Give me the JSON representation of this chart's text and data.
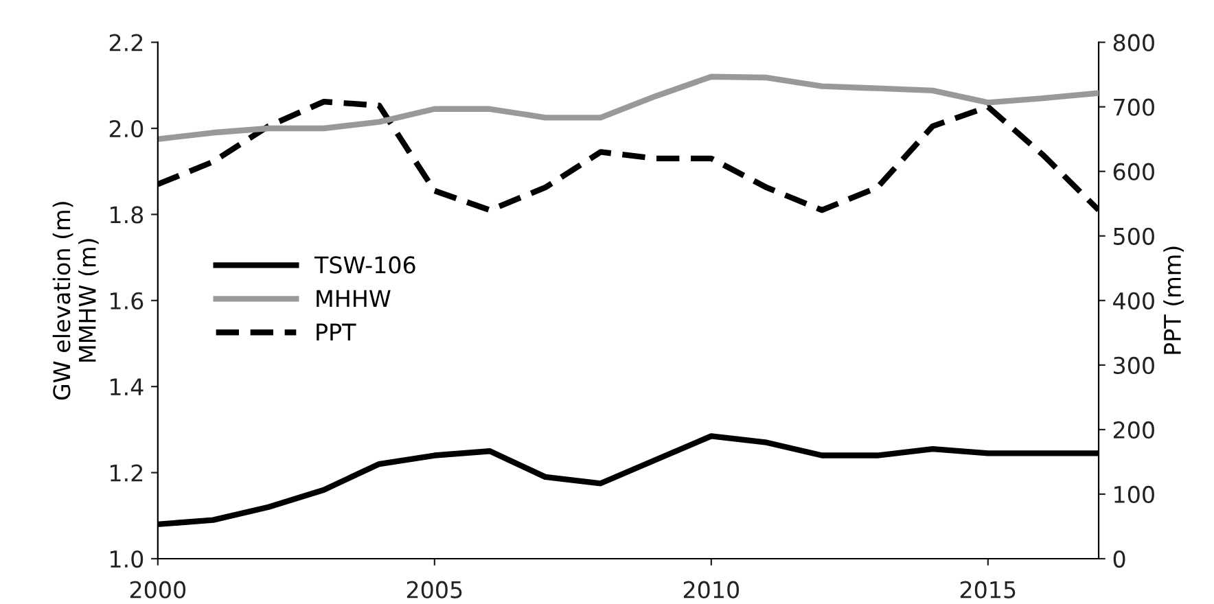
{
  "chart_data": {
    "type": "line",
    "ylabel": "GW elevation (m)\nMMHW (m)",
    "y2label": "PPT (mm)",
    "x": [
      2000,
      2001,
      2002,
      2003,
      2004,
      2005,
      2006,
      2007,
      2008,
      2009,
      2010,
      2011,
      2012,
      2013,
      2014,
      2015,
      2016,
      2017
    ],
    "xlim": [
      2000,
      2017
    ],
    "xticks": [
      2000,
      2005,
      2010,
      2015
    ],
    "ylim": [
      1.0,
      2.2
    ],
    "yticks": [
      {
        "value": 1.0,
        "label": "1.0"
      },
      1.2,
      1.4,
      1.6,
      1.8,
      {
        "value": 2.0,
        "label": "2.0"
      },
      2.2
    ],
    "y2lim": [
      0,
      800
    ],
    "y2ticks": [
      0,
      100,
      200,
      300,
      400,
      500,
      600,
      700,
      800
    ],
    "grid": false,
    "legend": "left",
    "marker": "none",
    "series": [
      {
        "name": "TSW-106",
        "color": "#000000",
        "line_style": "solid",
        "values": [
          1.08,
          1.09,
          1.12,
          1.16,
          1.22,
          1.24,
          1.25,
          1.19,
          1.175,
          1.23,
          1.285,
          1.27,
          1.24,
          1.24,
          1.255,
          1.245,
          1.245,
          1.245
        ]
      },
      {
        "name": "MHHW",
        "color": "#999999",
        "line_style": "solid",
        "values": [
          1.975,
          1.99,
          2.0,
          2.0,
          2.015,
          2.045,
          2.045,
          2.025,
          2.025,
          2.075,
          2.12,
          2.118,
          2.098,
          2.093,
          2.088,
          2.06,
          2.07,
          2.082
        ]
      },
      {
        "name": "PPT",
        "color": "#000000",
        "line_style": "dashed",
        "axis": "y2",
        "values": [
          580,
          615,
          670,
          708,
          702,
          570,
          540,
          575,
          630,
          620,
          620,
          575,
          540,
          575,
          670,
          700,
          625,
          540
        ]
      }
    ]
  }
}
